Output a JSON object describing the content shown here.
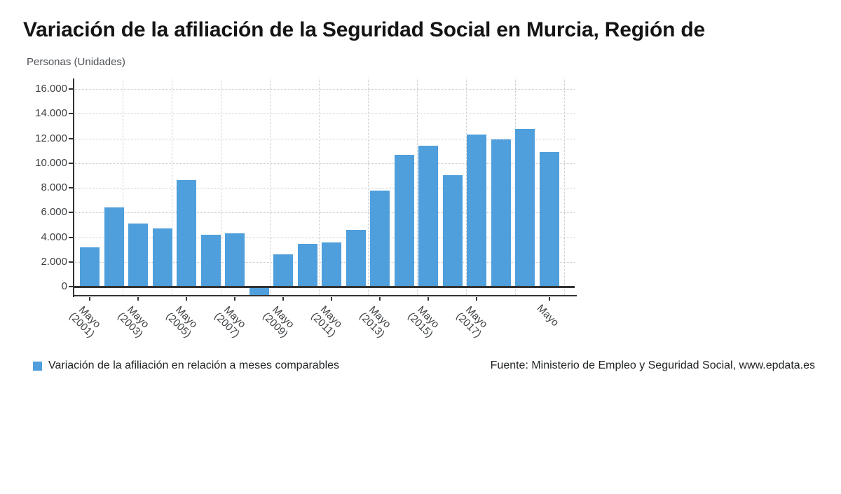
{
  "page": {
    "title": "Variación de la afiliación de la Seguridad Social en Murcia, Región de",
    "unit_label": "Personas (Unidades)"
  },
  "legend": {
    "label": "Variación de la afiliación en relación a meses comparables",
    "marker_color": "#4e9fdc"
  },
  "source": {
    "text": "Fuente: Ministerio de Empleo y Seguridad Social, www.epdata.es"
  },
  "chart_data": {
    "type": "bar",
    "title": "Variación de la afiliación de la Seguridad Social en Murcia, Región de",
    "ylabel": "Personas (Unidades)",
    "xlabel": "",
    "legend_entries": [
      "Variación de la afiliación en relación a meses comparables"
    ],
    "legend_position": "bottom",
    "grid": true,
    "bar_color": "#4e9fdc",
    "ylim": [
      -800,
      16850
    ],
    "y_ticks": [
      {
        "value": 0,
        "label": "0"
      },
      {
        "value": 2000,
        "label": "2.000"
      },
      {
        "value": 4000,
        "label": "4.000"
      },
      {
        "value": 6000,
        "label": "6.000"
      },
      {
        "value": 8000,
        "label": "8.000"
      },
      {
        "value": 10000,
        "label": "10.000"
      },
      {
        "value": 12000,
        "label": "12.000"
      },
      {
        "value": 14000,
        "label": "14.000"
      },
      {
        "value": 16000,
        "label": "16.000"
      }
    ],
    "values": [
      3200,
      6400,
      5100,
      4700,
      8650,
      4200,
      4300,
      -550,
      2600,
      3450,
      3550,
      4600,
      7750,
      10650,
      11400,
      9000,
      12300,
      11900,
      12750,
      10900
    ],
    "x_ticks": [
      {
        "index": 0,
        "lines": [
          "Mayo",
          "(2001)"
        ]
      },
      {
        "index": 2,
        "lines": [
          "Mayo",
          "(2003)"
        ]
      },
      {
        "index": 4,
        "lines": [
          "Mayo",
          "(2005)"
        ]
      },
      {
        "index": 6,
        "lines": [
          "Mayo",
          "(2007)"
        ]
      },
      {
        "index": 8,
        "lines": [
          "Mayo",
          "(2009)"
        ]
      },
      {
        "index": 10,
        "lines": [
          "Mayo",
          "(2011)"
        ]
      },
      {
        "index": 12,
        "lines": [
          "Mayo",
          "(2013)"
        ]
      },
      {
        "index": 14,
        "lines": [
          "Mayo",
          "(2015)"
        ]
      },
      {
        "index": 16,
        "lines": [
          "Mayo",
          "(2017)"
        ]
      },
      {
        "index": 19,
        "lines": [
          "Mayo"
        ]
      }
    ]
  }
}
